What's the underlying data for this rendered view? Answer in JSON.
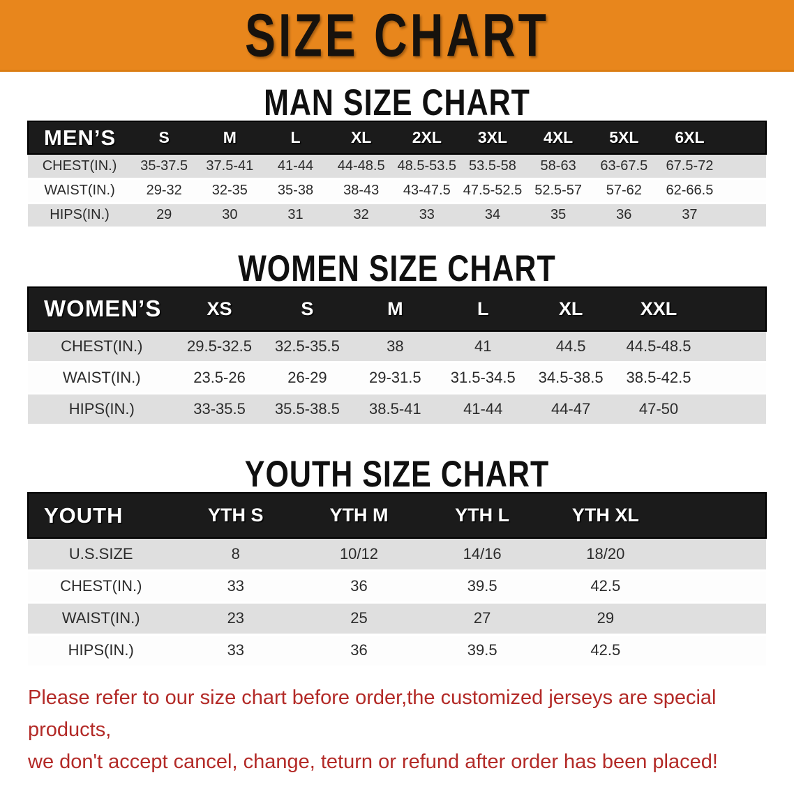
{
  "banner": {
    "title": "SIZE CHART",
    "background_color": "#E8861C",
    "text_color": "#17120d"
  },
  "headings": {
    "men": "MAN SIZE CHART",
    "women": "WOMEN SIZE CHART",
    "youth": "YOUTH SIZE CHART"
  },
  "tables": {
    "men": {
      "label": "MEN’S",
      "sizes": [
        "S",
        "M",
        "L",
        "XL",
        "2XL",
        "3XL",
        "4XL",
        "5XL",
        "6XL"
      ],
      "rows": [
        {
          "label": "CHEST(IN.)",
          "values": [
            "35-37.5",
            "37.5-41",
            "41-44",
            "44-48.5",
            "48.5-53.5",
            "53.5-58",
            "58-63",
            "63-67.5",
            "67.5-72"
          ]
        },
        {
          "label": "WAIST(IN.)",
          "values": [
            "29-32",
            "32-35",
            "35-38",
            "38-43",
            "43-47.5",
            "47.5-52.5",
            "52.5-57",
            "57-62",
            "62-66.5"
          ]
        },
        {
          "label": "HIPS(IN.)",
          "values": [
            "29",
            "30",
            "31",
            "32",
            "33",
            "34",
            "35",
            "36",
            "37"
          ]
        }
      ]
    },
    "women": {
      "label": "WOMEN’S",
      "sizes": [
        "XS",
        "S",
        "M",
        "L",
        "XL",
        "XXL"
      ],
      "rows": [
        {
          "label": "CHEST(IN.)",
          "values": [
            "29.5-32.5",
            "32.5-35.5",
            "38",
            "41",
            "44.5",
            "44.5-48.5"
          ]
        },
        {
          "label": "WAIST(IN.)",
          "values": [
            "23.5-26",
            "26-29",
            "29-31.5",
            "31.5-34.5",
            "34.5-38.5",
            "38.5-42.5"
          ]
        },
        {
          "label": "HIPS(IN.)",
          "values": [
            "33-35.5",
            "35.5-38.5",
            "38.5-41",
            "41-44",
            "44-47",
            "47-50"
          ]
        }
      ]
    },
    "youth": {
      "label": "YOUTH",
      "sizes": [
        "YTH S",
        "YTH M",
        "YTH L",
        "YTH XL"
      ],
      "rows": [
        {
          "label": "U.S.SIZE",
          "values": [
            "8",
            "10/12",
            "14/16",
            "18/20"
          ]
        },
        {
          "label": "CHEST(IN.)",
          "values": [
            "33",
            "36",
            "39.5",
            "42.5"
          ]
        },
        {
          "label": "WAIST(IN.)",
          "values": [
            "23",
            "25",
            "27",
            "29"
          ]
        },
        {
          "label": "HIPS(IN.)",
          "values": [
            "33",
            "36",
            "39.5",
            "42.5"
          ]
        }
      ]
    }
  },
  "note": {
    "line1": "Please refer to our size chart before order,the customized jerseys are special products,",
    "line2": "we don't accept cancel, change, teturn or refund after order has been placed!",
    "color": "#B32A27"
  }
}
